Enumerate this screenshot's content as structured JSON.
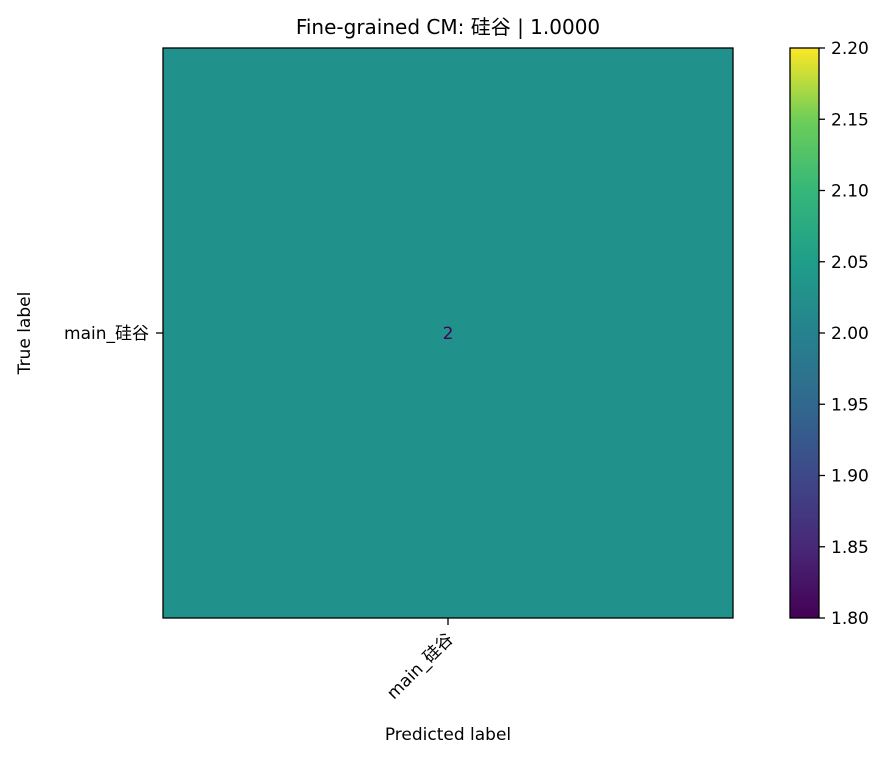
{
  "chart_data": {
    "type": "heatmap",
    "title": "Fine-grained CM: 硅谷 | 1.0000",
    "xlabel": "Predicted label",
    "ylabel": "True label",
    "x_categories": [
      "main_硅谷"
    ],
    "y_categories": [
      "main_硅谷"
    ],
    "matrix": [
      [
        2
      ]
    ],
    "cell_labels": [
      [
        "2"
      ]
    ],
    "colormap": "viridis",
    "colorbar": {
      "vmin": 1.8,
      "vmax": 2.2,
      "ticks": [
        1.8,
        1.85,
        1.9,
        1.95,
        2.0,
        2.05,
        2.1,
        2.15,
        2.2
      ],
      "tick_labels": [
        "1.80",
        "1.85",
        "1.90",
        "1.95",
        "2.00",
        "2.05",
        "2.10",
        "2.15",
        "2.20"
      ]
    },
    "cell_color": "#21918c",
    "cell_text_color": "#440154",
    "grid": false
  }
}
